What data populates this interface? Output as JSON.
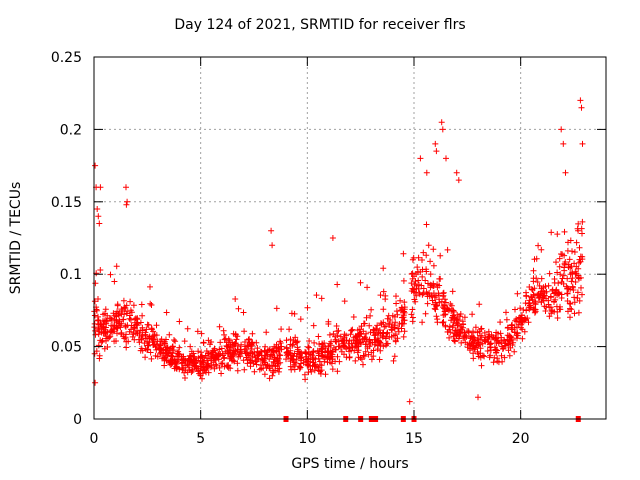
{
  "chart_data": {
    "type": "scatter",
    "title": "Day 124 of 2021, SRMTID for receiver flrs",
    "xlabel": "GPS time / hours",
    "ylabel": "SRMTID / TECUs",
    "xlim": [
      0,
      24
    ],
    "ylim": [
      0,
      0.25
    ],
    "xticks": [
      "0",
      "5",
      "10",
      "15",
      "20"
    ],
    "xtick_values": [
      0,
      5,
      10,
      15,
      20
    ],
    "yticks": [
      "0",
      "0.05",
      "0.1",
      "0.15",
      "0.2",
      "0.25"
    ],
    "ytick_values": [
      0,
      0.05,
      0.1,
      0.15,
      0.2,
      0.25
    ],
    "grid": true,
    "marker": "+",
    "color": "#ff0000",
    "series": [
      {
        "name": "SRMTID",
        "profile": {
          "x": [
            0.0,
            0.5,
            1.0,
            1.5,
            2.0,
            3.0,
            4.0,
            5.0,
            6.0,
            7.0,
            8.0,
            9.0,
            10.0,
            11.0,
            12.0,
            13.0,
            14.0,
            14.5,
            15.0,
            15.5,
            16.0,
            17.0,
            18.0,
            19.0,
            19.5,
            20.0,
            20.5,
            21.0,
            21.5,
            22.0,
            22.5,
            22.9
          ],
          "median": [
            0.065,
            0.058,
            0.065,
            0.07,
            0.06,
            0.052,
            0.04,
            0.038,
            0.045,
            0.048,
            0.04,
            0.045,
            0.04,
            0.045,
            0.055,
            0.055,
            0.065,
            0.07,
            0.09,
            0.1,
            0.085,
            0.065,
            0.05,
            0.05,
            0.055,
            0.065,
            0.085,
            0.085,
            0.08,
            0.1,
            0.09,
            0.11
          ],
          "spread": [
            0.035,
            0.025,
            0.025,
            0.03,
            0.02,
            0.02,
            0.015,
            0.015,
            0.02,
            0.02,
            0.02,
            0.025,
            0.02,
            0.025,
            0.025,
            0.025,
            0.03,
            0.03,
            0.04,
            0.04,
            0.035,
            0.025,
            0.02,
            0.02,
            0.02,
            0.025,
            0.025,
            0.025,
            0.03,
            0.05,
            0.05,
            0.06
          ]
        },
        "gaps": [
          [
            8.8,
            9.0
          ],
          [
            14.6,
            14.85
          ]
        ],
        "n_points": 1700,
        "outliers": [
          [
            0.05,
            0.175
          ],
          [
            0.1,
            0.16
          ],
          [
            0.15,
            0.145
          ],
          [
            0.2,
            0.14
          ],
          [
            0.25,
            0.135
          ],
          [
            0.3,
            0.16
          ],
          [
            1.5,
            0.16
          ],
          [
            1.55,
            0.15
          ],
          [
            1.52,
            0.148
          ],
          [
            8.3,
            0.13
          ],
          [
            8.35,
            0.12
          ],
          [
            11.2,
            0.125
          ],
          [
            15.3,
            0.18
          ],
          [
            15.6,
            0.17
          ],
          [
            16.0,
            0.19
          ],
          [
            16.05,
            0.185
          ],
          [
            16.3,
            0.205
          ],
          [
            16.35,
            0.2
          ],
          [
            16.5,
            0.18
          ],
          [
            17.0,
            0.17
          ],
          [
            17.1,
            0.165
          ],
          [
            21.9,
            0.2
          ],
          [
            22.0,
            0.19
          ],
          [
            22.1,
            0.17
          ],
          [
            22.8,
            0.22
          ],
          [
            22.85,
            0.215
          ],
          [
            22.9,
            0.19
          ],
          [
            0.05,
            0.025
          ],
          [
            14.8,
            0.012
          ],
          [
            18.0,
            0.015
          ]
        ],
        "zero_points": [
          9.0,
          11.8,
          12.5,
          13.0,
          13.2,
          14.5,
          15.0,
          22.7
        ]
      }
    ]
  }
}
